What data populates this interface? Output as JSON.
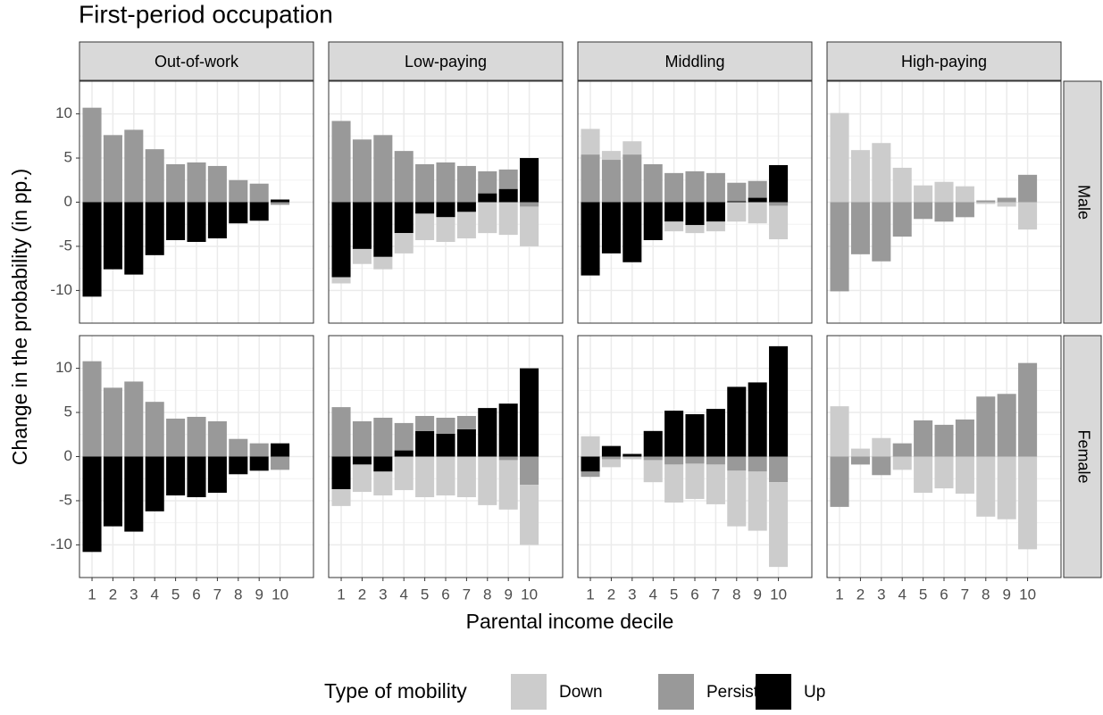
{
  "chart_data": {
    "type": "bar",
    "stacked": true,
    "title": "First-period occupation",
    "x_label": "Parental income decile",
    "y_label": "Change in the probability (in pp.)",
    "legend_title": "Type of mobility",
    "legend_position": "bottom",
    "grid": true,
    "columns": [
      "Out-of-work",
      "Low-paying",
      "Middling",
      "High-paying"
    ],
    "rows": [
      "Male",
      "Female"
    ],
    "categories": [
      "1",
      "2",
      "3",
      "4",
      "5",
      "6",
      "7",
      "8",
      "9",
      "10"
    ],
    "series": [
      {
        "name": "Down",
        "color": "#cccccc"
      },
      {
        "name": "Persist",
        "color": "#999999"
      },
      {
        "name": "Up",
        "color": "#000000"
      }
    ],
    "ylim": [
      -13.7,
      13.7
    ],
    "yticks": [
      -10,
      -5,
      0,
      5,
      10
    ],
    "panels": [
      {
        "values": [
          [
            0,
            0,
            0,
            0,
            0,
            0,
            0,
            0,
            0,
            0
          ],
          [
            10.7,
            7.6,
            8.2,
            6.0,
            4.3,
            4.5,
            4.1,
            2.5,
            2.1,
            -0.3
          ],
          [
            -10.7,
            -7.6,
            -8.2,
            -6.0,
            -4.3,
            -4.5,
            -4.1,
            -2.4,
            -2.1,
            0.3
          ]
        ]
      },
      {
        "values": [
          [
            -0.7,
            -1.7,
            -1.4,
            -2.3,
            -3.0,
            -2.8,
            -3.0,
            -3.5,
            -3.7,
            -4.5
          ],
          [
            9.2,
            7.1,
            7.6,
            5.8,
            4.3,
            4.5,
            4.1,
            2.5,
            2.2,
            -0.5
          ],
          [
            -8.5,
            -5.3,
            -6.2,
            -3.5,
            -1.3,
            -1.7,
            -1.1,
            1.0,
            1.5,
            5.0
          ]
        ]
      },
      {
        "values": [
          [
            2.9,
            1.0,
            1.5,
            0,
            -1.1,
            -0.9,
            -1.1,
            -2.2,
            -2.4,
            -3.8
          ],
          [
            5.4,
            4.8,
            5.4,
            4.3,
            3.3,
            3.5,
            3.3,
            2.1,
            1.9,
            -0.4
          ],
          [
            -8.3,
            -5.8,
            -6.8,
            -4.3,
            -2.2,
            -2.6,
            -2.2,
            0.1,
            0.5,
            4.2
          ]
        ]
      },
      {
        "values": [
          [
            10.1,
            5.9,
            6.7,
            3.9,
            1.9,
            2.3,
            1.8,
            -0.2,
            -0.5,
            -3.1
          ],
          [
            -10.1,
            -5.9,
            -6.7,
            -3.9,
            -1.9,
            -2.2,
            -1.7,
            0.2,
            0.5,
            3.1
          ],
          [
            0,
            0,
            0,
            0,
            0,
            0,
            0,
            0,
            0,
            0
          ]
        ]
      },
      {
        "values": [
          [
            0,
            0,
            0,
            0,
            0,
            0,
            0,
            0,
            0,
            0
          ],
          [
            10.8,
            7.8,
            8.5,
            6.2,
            4.3,
            4.5,
            4.0,
            2.0,
            1.5,
            -1.5
          ],
          [
            -10.8,
            -7.9,
            -8.5,
            -6.2,
            -4.4,
            -4.6,
            -4.1,
            -2.0,
            -1.6,
            1.5
          ]
        ]
      },
      {
        "values": [
          [
            -1.9,
            -3.1,
            -2.7,
            -3.8,
            -4.6,
            -4.4,
            -4.6,
            -5.5,
            -5.6,
            -6.8
          ],
          [
            5.6,
            4.0,
            4.4,
            3.1,
            1.7,
            1.8,
            1.5,
            0,
            -0.4,
            -3.2
          ],
          [
            -3.7,
            -0.9,
            -1.7,
            0.7,
            2.9,
            2.6,
            3.1,
            5.5,
            6.0,
            10.0
          ]
        ]
      },
      {
        "values": [
          [
            2.3,
            -0.9,
            -0.3,
            -2.5,
            -4.3,
            -4.0,
            -4.5,
            -6.3,
            -6.7,
            -9.6
          ],
          [
            -0.6,
            -0.3,
            0,
            -0.4,
            -0.9,
            -0.8,
            -0.9,
            -1.6,
            -1.7,
            -2.9
          ],
          [
            -1.7,
            1.2,
            0.3,
            2.9,
            5.2,
            4.8,
            5.4,
            7.9,
            8.4,
            12.5
          ]
        ]
      },
      {
        "values": [
          [
            5.7,
            0.9,
            2.1,
            -1.5,
            -4.1,
            -3.6,
            -4.2,
            -6.8,
            -7.1,
            -10.5
          ],
          [
            -5.7,
            -0.9,
            -2.1,
            1.5,
            4.1,
            3.6,
            4.2,
            6.8,
            7.1,
            10.6
          ],
          [
            0,
            0,
            0,
            0,
            0,
            0,
            0,
            0,
            0,
            0
          ]
        ]
      }
    ]
  }
}
